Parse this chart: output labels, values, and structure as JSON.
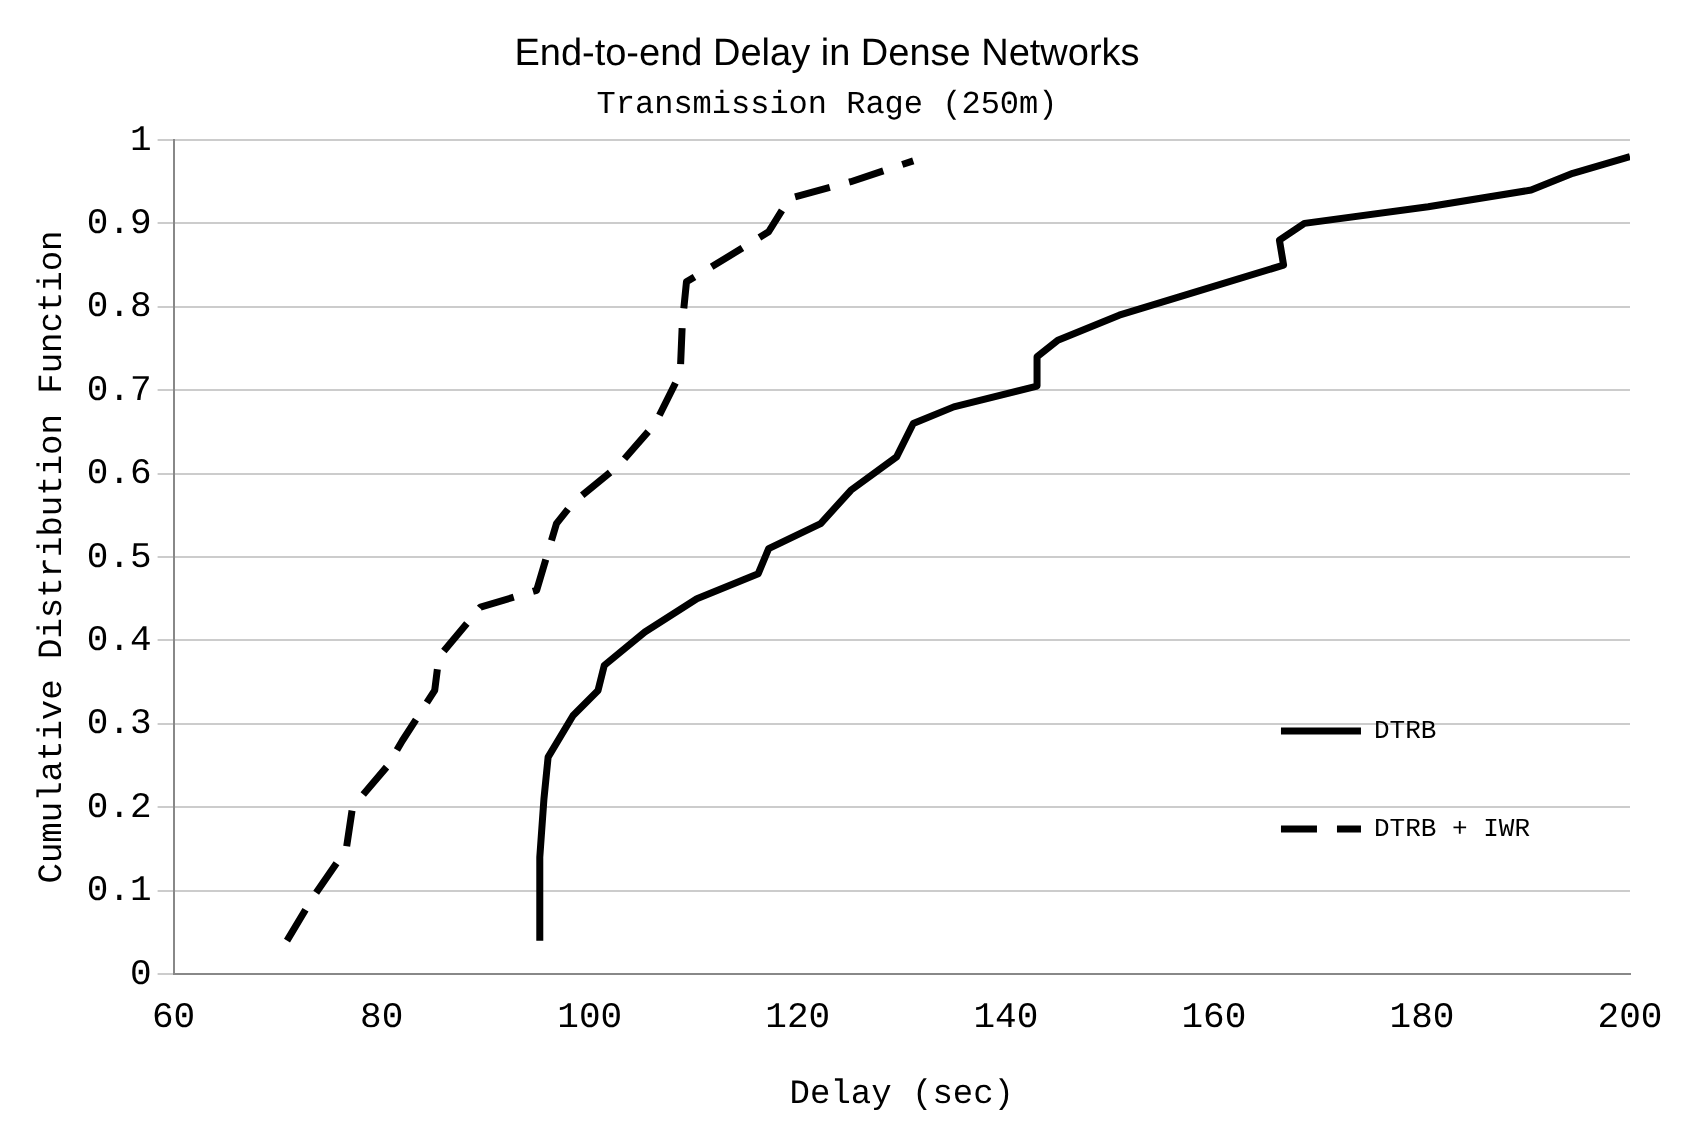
{
  "chart_data": {
    "type": "line",
    "title": "End-to-end Delay in Dense Networks",
    "subtitle": "Transmission Rage (250m)",
    "xlabel": "Delay (sec)",
    "ylabel": "Cumulative Distribution Function",
    "xlim": [
      60,
      200
    ],
    "xticks": [
      60,
      80,
      100,
      120,
      140,
      160,
      180,
      200
    ],
    "ylim": [
      0,
      1
    ],
    "yticks": [
      0,
      {
        "value": 0.1,
        "label": "0.1"
      },
      {
        "value": 0.2,
        "label": "0.2"
      },
      {
        "value": 0.3,
        "label": "0.3"
      },
      {
        "value": 0.4,
        "label": "0.4"
      },
      {
        "value": 0.5,
        "label": "0.5"
      },
      {
        "value": 0.6,
        "label": "0.6"
      },
      {
        "value": 0.7,
        "label": "0.7"
      },
      {
        "value": 0.8,
        "label": "0.8"
      },
      {
        "value": 0.9,
        "label": "0.9"
      },
      1
    ],
    "grid": "y",
    "legend": "bottom right",
    "marker": "none",
    "series": [
      {
        "name": "DTRB",
        "color": "#000000",
        "line_style": "solid",
        "x": [
          95.2,
          95.2,
          95.6,
          96,
          98.4,
          100.8,
          101.4,
          105.3,
          110.3,
          116.2,
          117.2,
          122.2,
          125.1,
          129.5,
          131.1,
          135,
          143,
          143,
          145,
          150.9,
          158.8,
          166.7,
          166.3,
          168.7,
          180.6,
          190.5,
          194.5,
          200
        ],
        "values": [
          0.04,
          0.14,
          0.21,
          0.26,
          0.31,
          0.34,
          0.37,
          0.41,
          0.45,
          0.48,
          0.51,
          0.54,
          0.58,
          0.62,
          0.66,
          0.68,
          0.705,
          0.74,
          0.76,
          0.79,
          0.82,
          0.85,
          0.88,
          0.9,
          0.92,
          0.94,
          0.96,
          0.98
        ]
      },
      {
        "name": "DTRB + IWR",
        "color": "#000000",
        "line_style": "dashed",
        "x": [
          70.9,
          73.3,
          76.6,
          77.2,
          80.6,
          82,
          85.1,
          85.5,
          89.5,
          94.9,
          96.8,
          98.4,
          102.8,
          106.3,
          108.7,
          108.9,
          109.3,
          113.3,
          117.2,
          119.2,
          125.1,
          131.1
        ],
        "values": [
          0.04,
          0.09,
          0.15,
          0.2,
          0.25,
          0.28,
          0.34,
          0.38,
          0.44,
          0.46,
          0.54,
          0.565,
          0.61,
          0.66,
          0.72,
          0.78,
          0.83,
          0.86,
          0.89,
          0.93,
          0.95,
          0.975
        ]
      }
    ]
  }
}
